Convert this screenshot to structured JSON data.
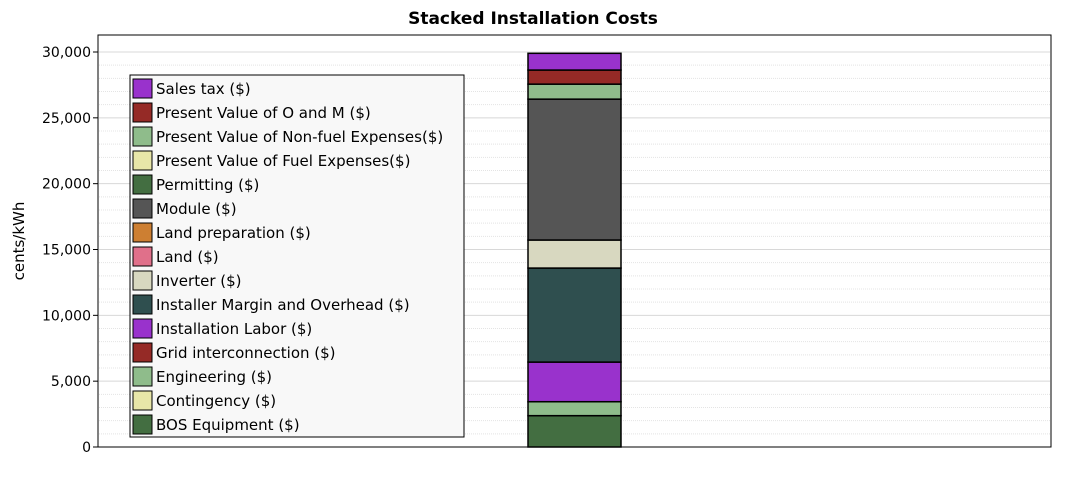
{
  "chart_data": {
    "type": "bar",
    "stacked": true,
    "title": "Stacked Installation Costs",
    "xlabel": "",
    "ylabel": "cents/kWh",
    "ylim": [
      0,
      31000
    ],
    "yticks": [
      "0",
      "5,000",
      "10,000",
      "15,000",
      "20,000",
      "25,000",
      "30,000"
    ],
    "ytick_values": [
      0,
      5000,
      10000,
      15000,
      20000,
      25000,
      30000
    ],
    "grid": true,
    "legend_position": "top-left",
    "series": [
      {
        "name": "BOS Equipment ($)",
        "color": "#436e41",
        "value": 2380
      },
      {
        "name": "Contingency ($)",
        "color": "#e8e6a8",
        "value": 0
      },
      {
        "name": "Engineering ($)",
        "color": "#8fbc8b",
        "value": 1060
      },
      {
        "name": "Grid interconnection ($)",
        "color": "#952a26",
        "value": 0
      },
      {
        "name": "Installation Labor ($)",
        "color": "#9932cc",
        "value": 3010
      },
      {
        "name": "Installer Margin and Overhead ($)",
        "color": "#2f4f4f",
        "value": 7140
      },
      {
        "name": "Inverter ($)",
        "color": "#d8d8c0",
        "value": 2130
      },
      {
        "name": "Land ($)",
        "color": "#e0708a",
        "value": 0
      },
      {
        "name": "Land preparation ($)",
        "color": "#cd7f32",
        "value": 0
      },
      {
        "name": "Module ($)",
        "color": "#555555",
        "value": 10700
      },
      {
        "name": "Permitting ($)",
        "color": "#436e41",
        "value": 0
      },
      {
        "name": "Present Value of Fuel Expenses($)",
        "color": "#e8e6a8",
        "value": 0
      },
      {
        "name": "Present Value of Non-fuel Expenses($)",
        "color": "#8fbc8b",
        "value": 1140
      },
      {
        "name": "Present Value of O and M ($)",
        "color": "#952a26",
        "value": 1070
      },
      {
        "name": "Sales tax ($)",
        "color": "#9932cc",
        "value": 1270
      }
    ]
  }
}
